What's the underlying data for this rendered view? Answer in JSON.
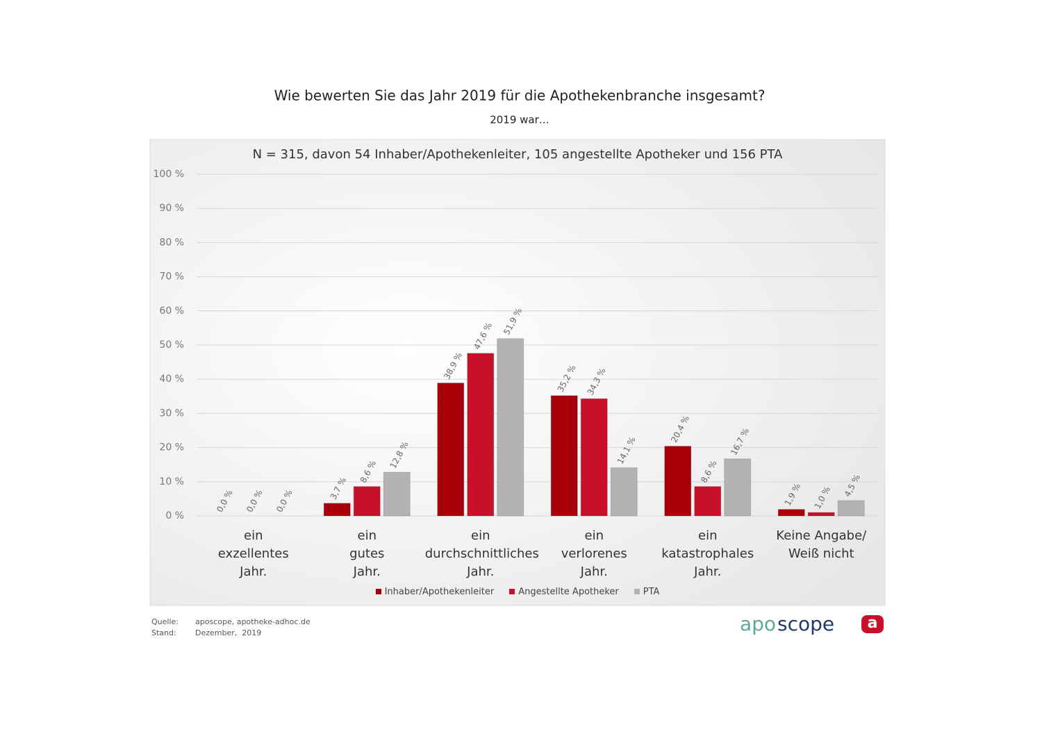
{
  "chart_data": {
    "type": "bar",
    "title": "Wie bewerten Sie das Jahr 2019 für die Apothekenbranche insgesamt?",
    "subtitle": "2019 war…",
    "annotation": "N = 315, davon 54 Inhaber/Apothekenleiter,  105 angestellte Apotheker und 156 PTA",
    "categories": [
      "ein\nexzellentes\nJahr.",
      "ein\ngutes\nJahr.",
      "ein\ndurchschnittliches\nJahr.",
      "ein\nverlorenes\nJahr.",
      "ein\nkatastrophales\nJahr.",
      "Keine Angabe/\nWeiß nicht"
    ],
    "series": [
      {
        "name": "Inhaber/Apothekenleiter",
        "color": "#a8000b",
        "values": [
          0.0,
          3.7,
          38.9,
          35.2,
          20.4,
          1.9
        ],
        "value_labels": [
          "0,0 %",
          "3,7 %",
          "38,9 %",
          "35,2 %",
          "20,4 %",
          "1,9 %"
        ]
      },
      {
        "name": "Angestellte Apotheker",
        "color": "#c9102a",
        "values": [
          0.0,
          8.6,
          47.6,
          34.3,
          8.6,
          1.0
        ],
        "value_labels": [
          "0,0 %",
          "8,6 %",
          "47,6 %",
          "34,3 %",
          "8,6 %",
          "1,0 %"
        ]
      },
      {
        "name": "PTA",
        "color": "#b3b3b3",
        "values": [
          0.0,
          12.8,
          51.9,
          14.1,
          16.7,
          4.5
        ],
        "value_labels": [
          "0,0 %",
          "12,8 %",
          "51,9 %",
          "14,1 %",
          "16,7 %",
          "4,5 %"
        ]
      }
    ],
    "ylim": [
      0,
      100
    ],
    "yticks": [
      {
        "value": 0,
        "label": "0 %"
      },
      {
        "value": 10,
        "label": "10 %"
      },
      {
        "value": 20,
        "label": "20 %"
      },
      {
        "value": 30,
        "label": "30 %"
      },
      {
        "value": 40,
        "label": "40 %"
      },
      {
        "value": 50,
        "label": "50 %"
      },
      {
        "value": 60,
        "label": "60 %"
      },
      {
        "value": 70,
        "label": "70 %"
      },
      {
        "value": 80,
        "label": "80 %"
      },
      {
        "value": 90,
        "label": "90 %"
      },
      {
        "value": 100,
        "label": "100 %"
      }
    ],
    "grid": true,
    "legend": "bottom"
  },
  "footer": {
    "source_label": "Quelle:",
    "source": "aposcope, apotheke-adhoc.de",
    "date_label": "Stand:",
    "date": "Dezember,  2019",
    "logo": {
      "part1": "apo",
      "part2": "scope",
      "icon": "a"
    }
  }
}
